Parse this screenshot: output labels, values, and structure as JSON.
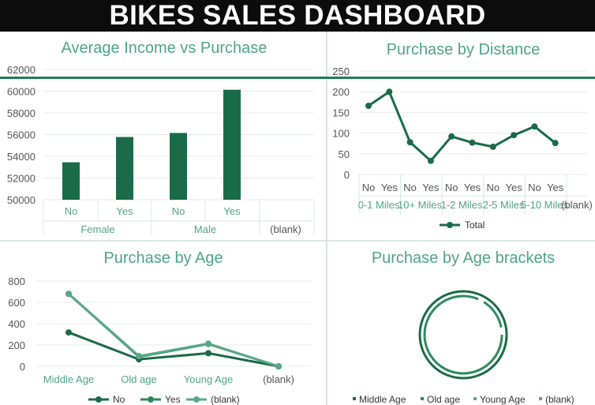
{
  "dashboard": {
    "title": "BIKES SALES DASHBOARD"
  },
  "colors": {
    "dark_green": "#1a6b4a",
    "mid_green": "#2e8a5e",
    "light_green": "#5aa889",
    "accent": "#1e7d55",
    "title_text": "#4ea487"
  },
  "chart_data": [
    {
      "id": "income",
      "type": "bar",
      "title": "Average Income vs Purchase",
      "groups": [
        "Female",
        "Male",
        "(blank)"
      ],
      "categories": [
        "No",
        "Yes",
        "No",
        "Yes"
      ],
      "category_groups": [
        "Female",
        "Female",
        "Male",
        "Male"
      ],
      "values": [
        53450,
        55780,
        56150,
        60130
      ],
      "ylim": [
        50000,
        62000
      ],
      "yticks": [
        "62000",
        "60000",
        "58000",
        "56000",
        "54000",
        "52000",
        "50000"
      ],
      "grid": true
    },
    {
      "id": "distance",
      "type": "line",
      "title": "Purchase by Distance",
      "groups": [
        "0-1 Miles",
        "10+ Miles",
        "1-2 Miles",
        "2-5 Miles",
        "5-10 Miles",
        "(blank)"
      ],
      "categories": [
        "No",
        "Yes",
        "No",
        "Yes",
        "No",
        "Yes",
        "No",
        "Yes",
        "No",
        "Yes"
      ],
      "series": [
        {
          "name": "Total",
          "values": [
            166,
            200,
            78,
            33,
            92,
            77,
            67,
            95,
            116,
            76
          ]
        }
      ],
      "ylim": [
        0,
        250
      ],
      "yticks": [
        "250",
        "200",
        "150",
        "100",
        "50",
        "0"
      ],
      "legend": "bottom",
      "grid": true
    },
    {
      "id": "age",
      "type": "line",
      "title": "Purchase by Age",
      "categories": [
        "Middle Age",
        "Old age",
        "Young Age",
        "(blank)"
      ],
      "series": [
        {
          "name": "No",
          "values": [
            318,
            66,
            123,
            0
          ]
        },
        {
          "name": "Yes",
          "values": [
            680,
            90,
            210,
            0
          ]
        },
        {
          "name": "(blank)",
          "values": [
            680,
            96,
            213,
            0
          ]
        }
      ],
      "ylim": [
        0,
        800
      ],
      "yticks": [
        "800",
        "600",
        "400",
        "200",
        "0"
      ],
      "legend": "bottom",
      "grid": true
    },
    {
      "id": "brackets",
      "type": "pie",
      "title": "Purchase by Age brackets",
      "legend_items": [
        "Middle Age",
        "Old age",
        "Young Age",
        "(blank)"
      ],
      "legend": "bottom"
    }
  ]
}
